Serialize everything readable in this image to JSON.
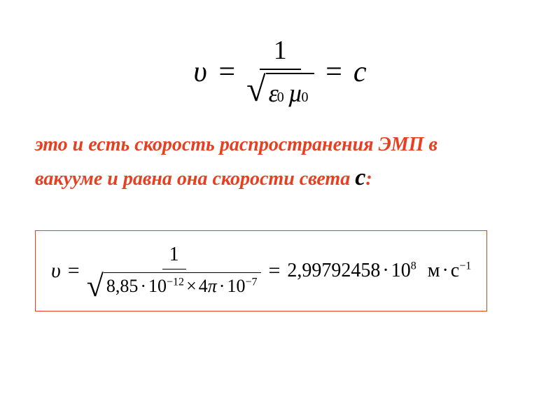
{
  "formula1": {
    "lhs": "υ",
    "eq": "=",
    "numerator": "1",
    "epsilon": "ε",
    "epsilon_sub": "0",
    "mu": "µ",
    "mu_sub": "0",
    "eq2": "=",
    "rhs": "c",
    "colors": {
      "text": "#000000",
      "line": "#000000"
    }
  },
  "description": {
    "line1": "это и есть скорость распространения ЭМП в",
    "line2_part1": "вакууме и равна она скорости света  ",
    "c_symbol": "с",
    "colon": ":",
    "color_red": "#e74020",
    "color_black": "#000000",
    "fontsize": 28
  },
  "formula2": {
    "lhs": "υ",
    "eq": "=",
    "numerator": "1",
    "den_a": "8,85",
    "den_a_exp": "−12",
    "den_b": "4",
    "pi": "π",
    "den_b_exp": "−7",
    "base10": "10",
    "eq2": "=",
    "result_coef": "2,99792458",
    "result_exp": "8",
    "unit_m": "м",
    "unit_s": "с",
    "unit_s_exp": "−1",
    "border_color": "#e74020",
    "text_color": "#000000"
  }
}
